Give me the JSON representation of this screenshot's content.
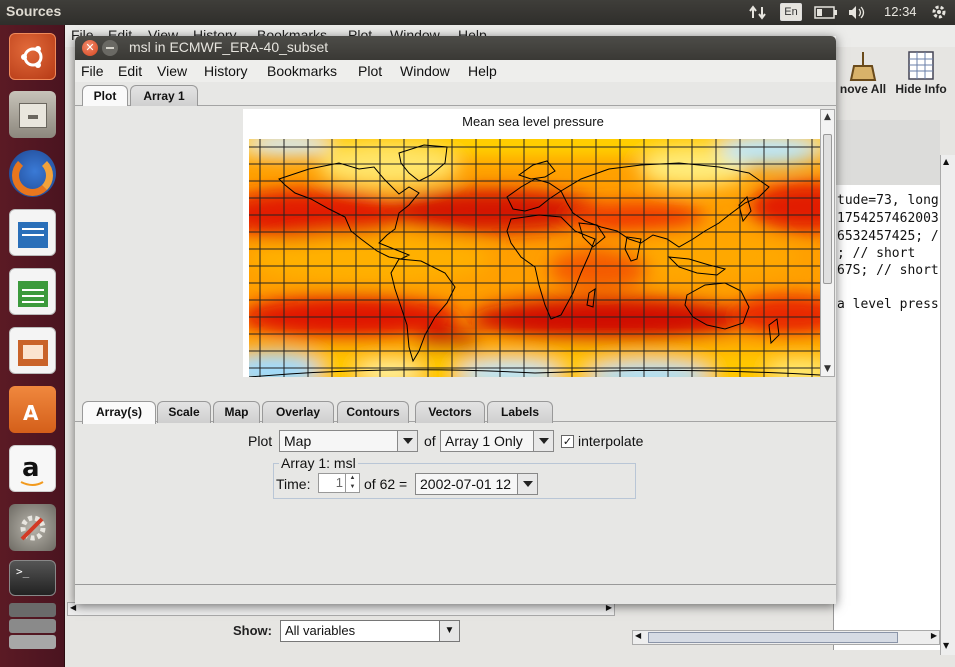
{
  "top_panel": {
    "app_title": "Sources",
    "keyboard": "En",
    "clock": "12:34"
  },
  "launcher": {
    "items": [
      "ubuntu-dash-icon",
      "files-icon",
      "firefox-icon",
      "writer-icon",
      "calc-icon",
      "impress-icon",
      "software-center-icon",
      "amazon-icon",
      "system-settings-icon",
      "terminal-icon",
      "workspace-switcher-icon"
    ]
  },
  "background_app": {
    "menus": [
      "File",
      "Edit",
      "View",
      "History",
      "Bookmarks",
      "Plot",
      "Window",
      "Help"
    ],
    "toolbar": {
      "remove_all": "nove All",
      "hide_info": "Hide Info"
    },
    "code_lines": [
      "tude=73, long",
      "1754257462003",
      "6532457425; /",
      "; // short",
      "67S; // short",
      "",
      "a level press"
    ],
    "show_label": "Show:",
    "show_value": "All variables"
  },
  "window": {
    "title": "msl in ECMWF_ERA-40_subset",
    "menus": [
      "File",
      "Edit",
      "View",
      "History",
      "Bookmarks",
      "Plot",
      "Window",
      "Help"
    ],
    "top_tabs": [
      "Plot",
      "Array 1"
    ],
    "plot_title": "Mean sea level pressure",
    "bottom_tabs": [
      "Array(s)",
      "Scale",
      "Map",
      "Overlay",
      "Contours",
      "Vectors",
      "Labels"
    ],
    "controls": {
      "plot_label": "Plot",
      "plot_type": "Map",
      "of_label": "of",
      "array_mode": "Array 1 Only",
      "interpolate_label": "interpolate",
      "interpolate_checked": true,
      "group_title": "Array 1: msl",
      "time_label": "Time:",
      "time_index": "1",
      "time_of": "of 62 =",
      "time_value": "2002-07-01 12"
    }
  },
  "colors": {
    "launcher": "#5b1a24",
    "titlebar": "#3f3e3a",
    "close_button": "#e05a30"
  }
}
